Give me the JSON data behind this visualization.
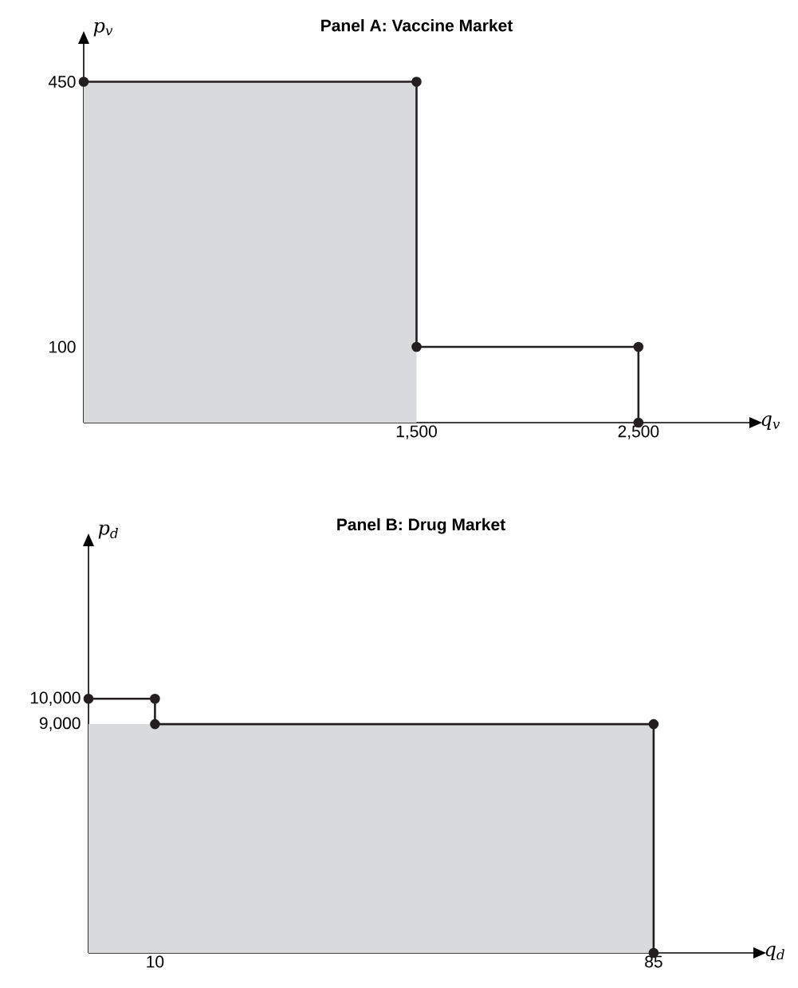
{
  "chart_data": [
    {
      "type": "line",
      "title": "**Panel A:  Vaccine Market**",
      "xlabel": "q$_{v}$",
      "ylabel": "p$_{v}$",
      "xlim": [
        0,
        3000
      ],
      "ylim": [
        0,
        500
      ],
      "xticks": [
        {
          "value": 1500,
          "label": "1,500"
        },
        {
          "value": 2500,
          "label": "2,500"
        }
      ],
      "yticks": [
        100,
        450
      ],
      "series": [
        {
          "type": "area",
          "color": "#d9dadc",
          "x": [
            0,
            1500
          ],
          "values": [
            450,
            450
          ]
        },
        {
          "color": "#231f20",
          "marker": "circle",
          "x": [
            0,
            1500,
            1500,
            2500,
            2500
          ],
          "values": [
            450,
            450,
            100,
            100,
            0
          ]
        }
      ]
    },
    {
      "type": "line",
      "title": "**Panel B:  Drug Market**",
      "xlabel": "q$_{d}$",
      "ylabel": "p$_{d}$",
      "xlim": [
        0,
        100
      ],
      "ylim": [
        0,
        16000
      ],
      "xticks": [
        10,
        85
      ],
      "yticks": [
        {
          "value": 9000,
          "label": "9,000"
        },
        {
          "value": 10000,
          "label": "10,000"
        }
      ],
      "series": [
        {
          "type": "area",
          "color": "#d9dadc",
          "x": [
            0,
            85
          ],
          "values": [
            9000,
            9000
          ]
        },
        {
          "color": "#231f20",
          "marker": "circle",
          "x": [
            0,
            10,
            10,
            85,
            85
          ],
          "values": [
            10000,
            10000,
            9000,
            9000,
            0
          ]
        }
      ]
    }
  ]
}
